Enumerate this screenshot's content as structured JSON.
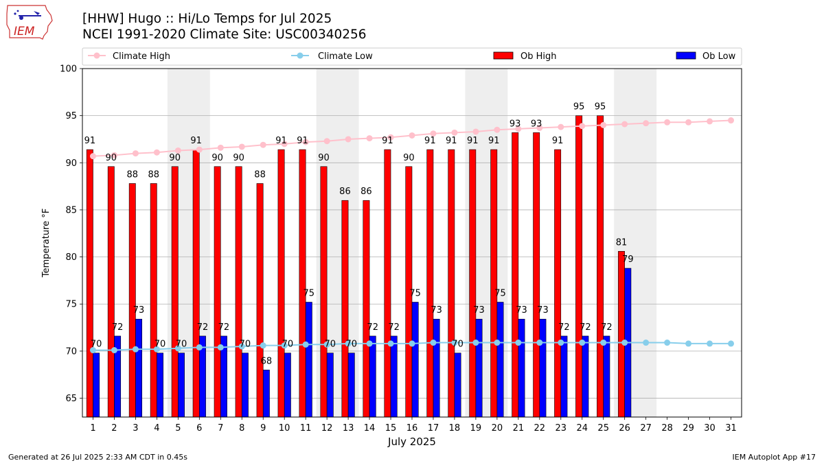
{
  "titles": {
    "line1": "[HHW] Hugo :: Hi/Lo Temps for Jul 2025",
    "line2": "NCEI 1991-2020 Climate Site: USC00340256"
  },
  "logo": {
    "icon": "iem-iowa-logo-icon",
    "text": "IEM"
  },
  "footer": {
    "left": "Generated at 26 Jul 2025 2:33 AM CDT in 0.45s",
    "right": "IEM Autoplot App #17"
  },
  "colors": {
    "ob_high": "#ff0000",
    "ob_low": "#0000ff",
    "climate_high": "#ffc0cb",
    "climate_low": "#87ceeb",
    "weekend_shade": "#eeeeee",
    "grid": "#b0b0b0"
  },
  "chart_data": {
    "type": "bar",
    "xlabel": "July 2025",
    "ylabel": "Temperature °F",
    "ylim": [
      63,
      100
    ],
    "yticks": [
      65,
      70,
      75,
      80,
      85,
      90,
      95,
      100
    ],
    "grid": "y",
    "legend_placement": "top",
    "categories": [
      "1",
      "2",
      "3",
      "4",
      "5",
      "6",
      "7",
      "8",
      "9",
      "10",
      "11",
      "12",
      "13",
      "14",
      "15",
      "16",
      "17",
      "18",
      "19",
      "20",
      "21",
      "22",
      "23",
      "24",
      "25",
      "26",
      "27",
      "28",
      "29",
      "30",
      "31"
    ],
    "shaded_days": [
      [
        5,
        6
      ],
      [
        12,
        13
      ],
      [
        19,
        20
      ],
      [
        26,
        27
      ]
    ],
    "series": [
      {
        "name": "Climate High",
        "kind": "line",
        "color_key": "climate_high",
        "values": [
          90.7,
          90.8,
          91.0,
          91.1,
          91.3,
          91.4,
          91.6,
          91.7,
          91.9,
          92.0,
          92.2,
          92.3,
          92.5,
          92.6,
          92.7,
          92.9,
          93.1,
          93.2,
          93.3,
          93.5,
          93.6,
          93.7,
          93.8,
          93.9,
          94.0,
          94.1,
          94.2,
          94.3,
          94.3,
          94.4,
          94.5
        ]
      },
      {
        "name": "Climate Low",
        "kind": "line",
        "color_key": "climate_low",
        "values": [
          70.1,
          70.1,
          70.2,
          70.2,
          70.3,
          70.4,
          70.4,
          70.5,
          70.6,
          70.6,
          70.7,
          70.7,
          70.8,
          70.8,
          70.8,
          70.8,
          70.9,
          70.9,
          70.9,
          70.9,
          70.9,
          70.9,
          70.9,
          70.9,
          70.9,
          70.9,
          70.9,
          70.9,
          70.8,
          70.8,
          70.8
        ]
      },
      {
        "name": "Ob High",
        "kind": "bar",
        "color_key": "ob_high",
        "values": [
          91,
          90,
          88,
          88,
          90,
          91,
          90,
          90,
          88,
          91,
          91,
          90,
          86,
          86,
          91,
          90,
          91,
          91,
          91,
          91,
          93,
          93,
          91,
          95,
          95,
          81,
          null,
          null,
          null,
          null,
          null
        ],
        "bar_values": [
          91.4,
          89.6,
          87.8,
          87.8,
          89.6,
          91.4,
          89.6,
          89.6,
          87.8,
          91.4,
          91.4,
          89.6,
          86.0,
          86.0,
          91.4,
          89.6,
          91.4,
          91.4,
          91.4,
          91.4,
          93.2,
          93.2,
          91.4,
          95.0,
          95.0,
          80.6,
          null,
          null,
          null,
          null,
          null
        ]
      },
      {
        "name": "Ob Low",
        "kind": "bar",
        "color_key": "ob_low",
        "values": [
          70,
          72,
          73,
          70,
          70,
          72,
          72,
          70,
          68,
          70,
          75,
          70,
          70,
          72,
          72,
          75,
          73,
          70,
          73,
          75,
          73,
          73,
          72,
          72,
          72,
          79,
          null,
          null,
          null,
          null,
          null
        ],
        "bar_values": [
          69.8,
          71.6,
          73.4,
          69.8,
          69.8,
          71.6,
          71.6,
          69.8,
          68.0,
          69.8,
          75.2,
          69.8,
          69.8,
          71.6,
          71.6,
          75.2,
          73.4,
          69.8,
          73.4,
          75.2,
          73.4,
          73.4,
          71.6,
          71.6,
          71.6,
          78.8,
          null,
          null,
          null,
          null,
          null
        ]
      }
    ]
  }
}
